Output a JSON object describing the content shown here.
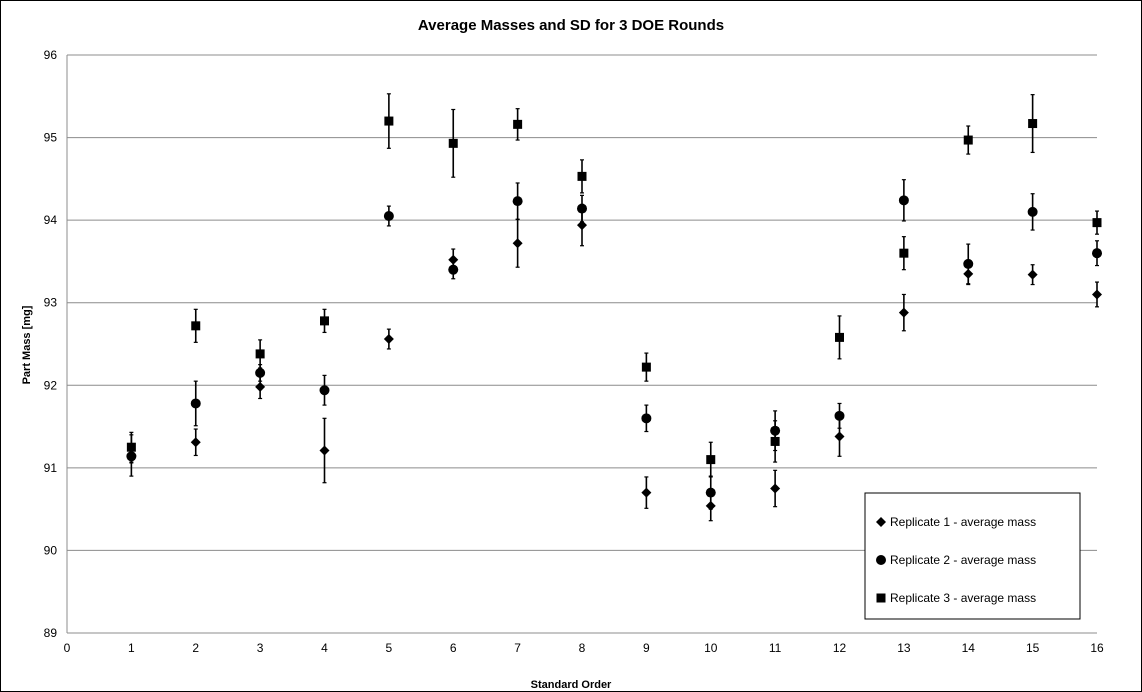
{
  "chart_data": {
    "type": "scatter",
    "title": "Average Masses and SD for 3 DOE Rounds",
    "xlabel": "Standard Order",
    "ylabel": "Part Mass [mg]",
    "xlim": [
      0,
      16
    ],
    "ylim": [
      89,
      96
    ],
    "xticks": [
      0,
      1,
      2,
      3,
      4,
      5,
      6,
      7,
      8,
      9,
      10,
      11,
      12,
      13,
      14,
      15,
      16
    ],
    "yticks": [
      89,
      90,
      91,
      92,
      93,
      94,
      95,
      96
    ],
    "grid": "horizontal",
    "legend_position": "bottom-right",
    "series": [
      {
        "name": "Replicate 1 - average mass",
        "marker": "diamond",
        "x": [
          1,
          2,
          3,
          4,
          5,
          6,
          7,
          8,
          9,
          10,
          11,
          12,
          13,
          14,
          15,
          16
        ],
        "y": [
          91.15,
          91.31,
          91.98,
          91.21,
          92.56,
          93.52,
          93.72,
          93.94,
          90.7,
          90.54,
          90.75,
          91.38,
          92.88,
          93.35,
          93.34,
          93.1
        ],
        "sd": [
          0.25,
          0.16,
          0.14,
          0.39,
          0.12,
          0.13,
          0.29,
          0.25,
          0.19,
          0.18,
          0.22,
          0.24,
          0.22,
          0.13,
          0.12,
          0.15
        ]
      },
      {
        "name": "Replicate 2 - average mass",
        "marker": "circle",
        "x": [
          1,
          2,
          3,
          4,
          5,
          6,
          7,
          8,
          9,
          10,
          11,
          12,
          13,
          14,
          15,
          16
        ],
        "y": [
          91.14,
          91.78,
          92.15,
          91.94,
          94.05,
          93.4,
          94.23,
          94.14,
          91.6,
          90.7,
          91.45,
          91.63,
          94.24,
          93.47,
          94.1,
          93.6
        ],
        "sd": [
          0.08,
          0.27,
          0.1,
          0.18,
          0.12,
          0.11,
          0.22,
          0.16,
          0.16,
          0.2,
          0.24,
          0.15,
          0.25,
          0.24,
          0.22,
          0.15
        ]
      },
      {
        "name": "Replicate 3 - average mass",
        "marker": "square",
        "x": [
          1,
          2,
          3,
          4,
          5,
          6,
          7,
          8,
          9,
          10,
          11,
          12,
          13,
          14,
          15,
          16
        ],
        "y": [
          91.25,
          92.72,
          92.38,
          92.78,
          95.2,
          94.93,
          95.16,
          94.53,
          92.22,
          91.1,
          91.32,
          92.58,
          93.6,
          94.97,
          95.17,
          93.97
        ],
        "sd": [
          0.18,
          0.2,
          0.17,
          0.14,
          0.33,
          0.41,
          0.19,
          0.2,
          0.17,
          0.21,
          0.25,
          0.26,
          0.2,
          0.17,
          0.35,
          0.14
        ]
      }
    ],
    "colors": {
      "markers": "#000000",
      "gridlines": "#8c8c8c",
      "axis": "#8c8c8c",
      "frame": "#000000"
    }
  }
}
